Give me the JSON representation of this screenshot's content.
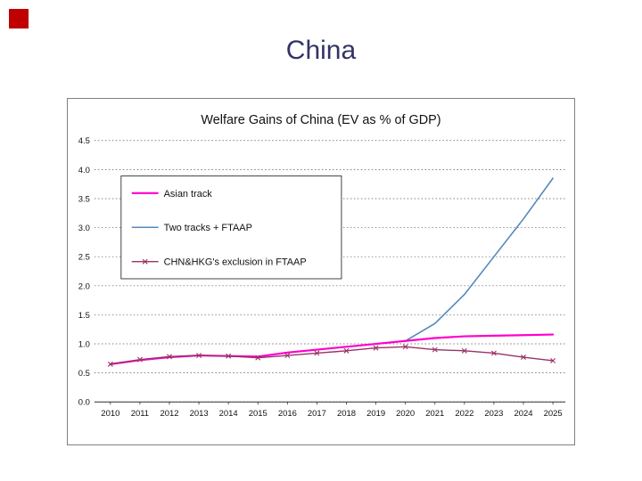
{
  "slide": {
    "title": "China",
    "accent_color": "#c00000"
  },
  "chart_data": {
    "type": "line",
    "title": "Welfare Gains of China (EV as % of GDP)",
    "x": [
      2010,
      2011,
      2012,
      2013,
      2014,
      2015,
      2016,
      2017,
      2018,
      2019,
      2020,
      2021,
      2022,
      2023,
      2024,
      2025
    ],
    "series": [
      {
        "name": "Asian track",
        "color": "#ff00cc",
        "width": 2.2,
        "marker": "none",
        "values": [
          0.65,
          0.72,
          0.77,
          0.8,
          0.79,
          0.78,
          0.85,
          0.9,
          0.95,
          1.0,
          1.05,
          1.1,
          1.13,
          1.14,
          1.15,
          1.16
        ]
      },
      {
        "name": "Two tracks + FTAAP",
        "color": "#5588bb",
        "width": 1.6,
        "marker": "none",
        "values": [
          0.65,
          0.72,
          0.77,
          0.8,
          0.79,
          0.78,
          0.85,
          0.9,
          0.95,
          1.0,
          1.05,
          1.35,
          1.85,
          2.5,
          3.15,
          3.85
        ]
      },
      {
        "name": "CHN&HKG's exclusion in FTAAP",
        "color": "#993366",
        "width": 1.4,
        "marker": "x",
        "values": [
          0.65,
          0.73,
          0.78,
          0.8,
          0.79,
          0.76,
          0.8,
          0.84,
          0.88,
          0.93,
          0.95,
          0.9,
          0.88,
          0.84,
          0.77,
          0.71
        ]
      }
    ],
    "ylim": [
      0.0,
      4.5
    ],
    "yticks": [
      0.0,
      0.5,
      1.0,
      1.5,
      2.0,
      2.5,
      3.0,
      3.5,
      4.0,
      4.5
    ],
    "grid": "dashed-horizontal",
    "grid_color": "#555555",
    "axis_color": "#333333",
    "legend_position": "upper-left"
  }
}
